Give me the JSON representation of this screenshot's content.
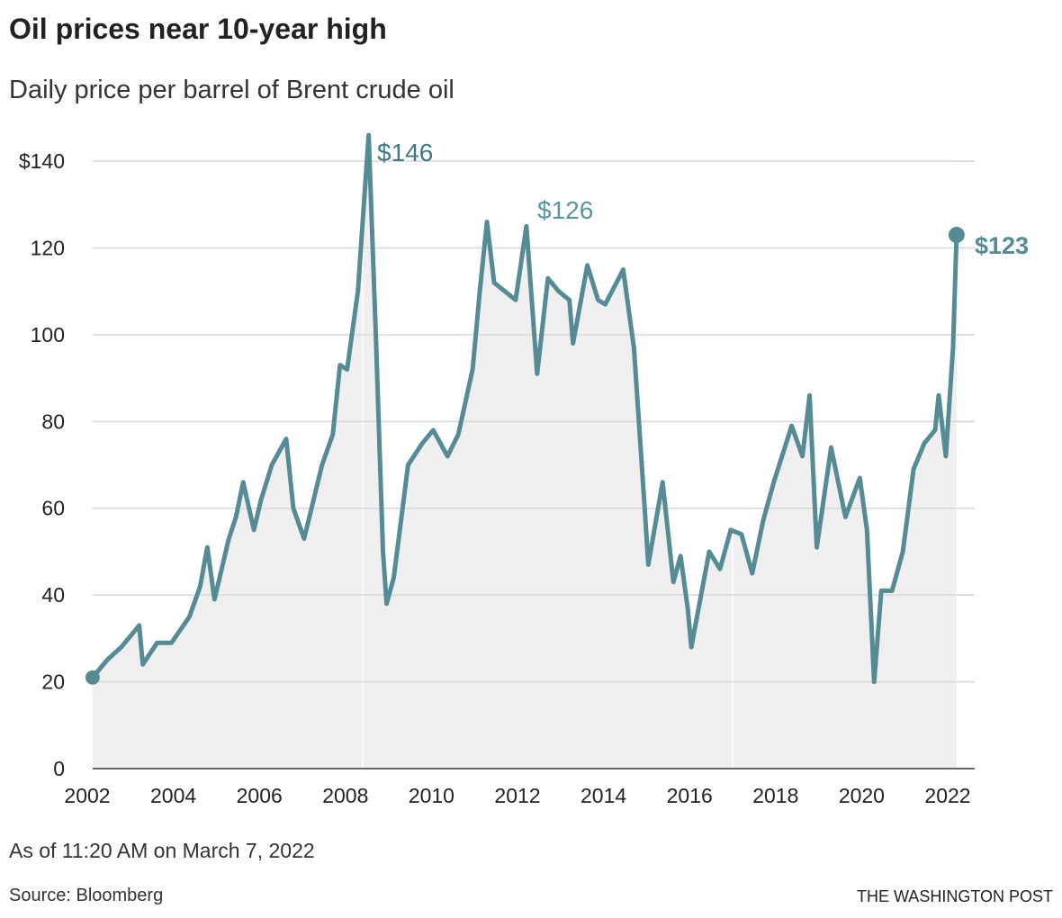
{
  "header": {
    "title": "Oil prices near 10-year high",
    "subtitle": "Daily price per barrel of Brent crude oil"
  },
  "footer": {
    "as_of": "As of 11:20 AM on March 7, 2022",
    "source": "Source: Bloomberg",
    "credit": "THE WASHINGTON POST"
  },
  "colors": {
    "line": "#558b94",
    "fill": "#efefef",
    "grid": "#d8d8d8",
    "label_dark": "#3f7a84",
    "label_light": "#5a949c"
  },
  "chart_data": {
    "type": "area",
    "title": "Oil prices near 10-year high",
    "subtitle": "Daily price per barrel of Brent crude oil",
    "xlabel": "",
    "ylabel": "",
    "xlim": [
      2002,
      2022.3
    ],
    "ylim": [
      0,
      140
    ],
    "grid": "horizontal",
    "x_ticks": [
      "2002",
      "2004",
      "2006",
      "2008",
      "2010",
      "2012",
      "2014",
      "2016",
      "2018",
      "2020",
      "2022"
    ],
    "y_ticks": [
      {
        "v": 0,
        "label": "0"
      },
      {
        "v": 20,
        "label": "20"
      },
      {
        "v": 40,
        "label": "40"
      },
      {
        "v": 60,
        "label": "60"
      },
      {
        "v": 80,
        "label": "80"
      },
      {
        "v": 100,
        "label": "100"
      },
      {
        "v": 120,
        "label": "120"
      },
      {
        "v": 140,
        "label": "$140"
      }
    ],
    "annotations": [
      {
        "date": "2008-07",
        "value": 146,
        "label": "$146"
      },
      {
        "date": "2012-03",
        "value": 126,
        "label": "$126"
      },
      {
        "date": "2022-03",
        "value": 123,
        "label": "$123"
      }
    ],
    "points": [
      [
        "2002-02",
        21
      ],
      [
        "2002-06",
        25
      ],
      [
        "2002-10",
        28
      ],
      [
        "2003-01",
        31
      ],
      [
        "2003-03",
        33
      ],
      [
        "2003-04",
        24
      ],
      [
        "2003-08",
        29
      ],
      [
        "2003-12",
        29
      ],
      [
        "2004-05",
        35
      ],
      [
        "2004-08",
        42
      ],
      [
        "2004-10",
        51
      ],
      [
        "2004-12",
        39
      ],
      [
        "2005-04",
        53
      ],
      [
        "2005-06",
        58
      ],
      [
        "2005-08",
        66
      ],
      [
        "2005-11",
        55
      ],
      [
        "2006-01",
        62
      ],
      [
        "2006-04",
        70
      ],
      [
        "2006-08",
        76
      ],
      [
        "2006-10",
        60
      ],
      [
        "2007-01",
        53
      ],
      [
        "2007-06",
        70
      ],
      [
        "2007-09",
        77
      ],
      [
        "2007-11",
        93
      ],
      [
        "2008-01",
        92
      ],
      [
        "2008-04",
        110
      ],
      [
        "2008-07",
        146
      ],
      [
        "2008-09",
        100
      ],
      [
        "2008-11",
        50
      ],
      [
        "2008-12",
        38
      ],
      [
        "2009-02",
        44
      ],
      [
        "2009-06",
        70
      ],
      [
        "2009-10",
        75
      ],
      [
        "2010-01",
        78
      ],
      [
        "2010-05",
        72
      ],
      [
        "2010-08",
        77
      ],
      [
        "2010-12",
        92
      ],
      [
        "2011-02",
        110
      ],
      [
        "2011-04",
        126
      ],
      [
        "2011-06",
        112
      ],
      [
        "2011-09",
        110
      ],
      [
        "2011-12",
        108
      ],
      [
        "2012-03",
        125
      ],
      [
        "2012-06",
        91
      ],
      [
        "2012-09",
        113
      ],
      [
        "2012-12",
        110
      ],
      [
        "2013-03",
        108
      ],
      [
        "2013-04",
        98
      ],
      [
        "2013-08",
        116
      ],
      [
        "2013-11",
        108
      ],
      [
        "2014-01",
        107
      ],
      [
        "2014-06",
        115
      ],
      [
        "2014-09",
        97
      ],
      [
        "2014-12",
        60
      ],
      [
        "2015-01",
        47
      ],
      [
        "2015-05",
        66
      ],
      [
        "2015-08",
        43
      ],
      [
        "2015-10",
        49
      ],
      [
        "2015-12",
        37
      ],
      [
        "2016-01",
        28
      ],
      [
        "2016-06",
        50
      ],
      [
        "2016-09",
        46
      ],
      [
        "2016-12",
        55
      ],
      [
        "2017-03",
        54
      ],
      [
        "2017-06",
        45
      ],
      [
        "2017-09",
        57
      ],
      [
        "2017-12",
        66
      ],
      [
        "2018-05",
        79
      ],
      [
        "2018-08",
        72
      ],
      [
        "2018-10",
        86
      ],
      [
        "2018-12",
        51
      ],
      [
        "2019-04",
        74
      ],
      [
        "2019-08",
        58
      ],
      [
        "2019-12",
        67
      ],
      [
        "2020-02",
        55
      ],
      [
        "2020-04",
        20
      ],
      [
        "2020-06",
        41
      ],
      [
        "2020-09",
        41
      ],
      [
        "2020-12",
        50
      ],
      [
        "2021-03",
        69
      ],
      [
        "2021-06",
        75
      ],
      [
        "2021-09",
        78
      ],
      [
        "2021-10",
        86
      ],
      [
        "2021-12",
        72
      ],
      [
        "2022-02",
        97
      ],
      [
        "2022-03",
        123
      ]
    ]
  }
}
